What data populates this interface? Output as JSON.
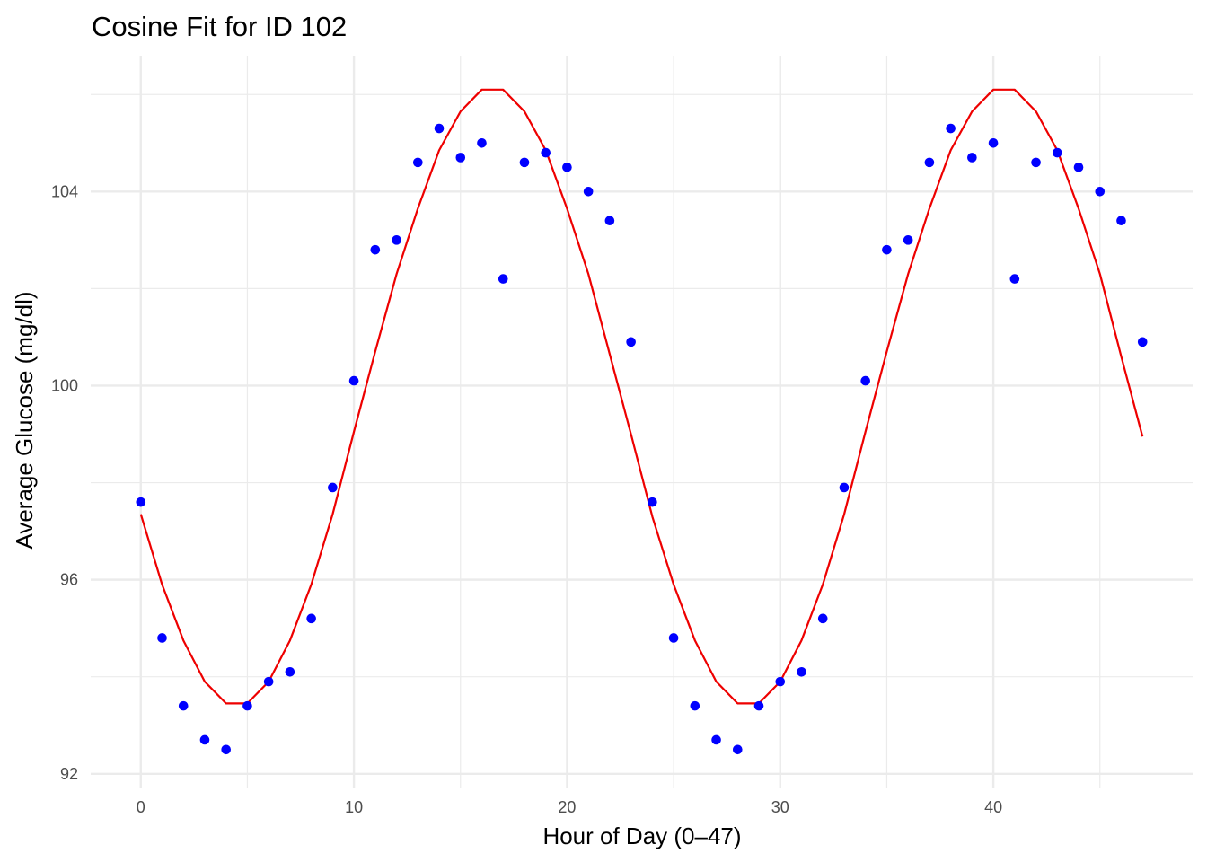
{
  "chart_data": {
    "type": "scatter",
    "title": "Cosine Fit for ID 102",
    "xlabel": "Hour of Day (0–47)",
    "ylabel": "Average Glucose (mg/dl)",
    "xlim": [
      -2.35,
      49.35
    ],
    "ylim": [
      91.7,
      106.8
    ],
    "x_ticks": [
      0,
      10,
      20,
      30,
      40
    ],
    "y_ticks": [
      92,
      96,
      100,
      104
    ],
    "grid": true,
    "legend": "none",
    "colors": {
      "points": "#0000ff",
      "fit": "#ee0000",
      "grid": "#ebebeb"
    },
    "series": [
      {
        "kind": "points",
        "x": [
          0,
          1,
          2,
          3,
          4,
          5,
          6,
          7,
          8,
          9,
          10,
          11,
          12,
          13,
          14,
          15,
          16,
          17,
          18,
          19,
          20,
          21,
          22,
          23,
          24,
          25,
          26,
          27,
          28,
          29,
          30,
          31,
          32,
          33,
          34,
          35,
          36,
          37,
          38,
          39,
          40,
          41,
          42,
          43,
          44,
          45,
          46,
          47
        ],
        "y": [
          97.6,
          94.8,
          93.4,
          92.7,
          92.5,
          93.4,
          93.9,
          94.1,
          95.2,
          97.9,
          100.1,
          102.8,
          103.0,
          104.6,
          105.3,
          104.7,
          105.0,
          102.2,
          104.6,
          104.8,
          104.5,
          104.0,
          103.4,
          100.9,
          97.6,
          94.8,
          93.4,
          92.7,
          92.5,
          93.4,
          93.9,
          94.1,
          95.2,
          97.9,
          100.1,
          102.8,
          103.0,
          104.6,
          105.3,
          104.7,
          105.0,
          102.2,
          104.6,
          104.8,
          104.5,
          104.0,
          103.4,
          100.9
        ]
      },
      {
        "kind": "fit-line",
        "x": [
          0,
          1,
          2,
          3,
          4,
          5,
          6,
          7,
          8,
          9,
          10,
          11,
          12,
          13,
          14,
          15,
          16,
          17,
          18,
          19,
          20,
          21,
          22,
          23,
          24,
          25,
          26,
          27,
          28,
          29,
          30,
          31,
          32,
          33,
          34,
          35,
          36,
          37,
          38,
          39,
          40,
          41,
          42,
          43,
          44,
          45,
          46,
          47
        ],
        "y": [
          97.35,
          95.9,
          94.75,
          93.9,
          93.45,
          93.45,
          93.9,
          94.75,
          95.9,
          97.35,
          99.05,
          100.7,
          102.3,
          103.65,
          104.85,
          105.65,
          106.1,
          106.1,
          105.65,
          104.85,
          103.65,
          102.3,
          100.65,
          99.0,
          97.3,
          95.9,
          94.75,
          93.9,
          93.45,
          93.45,
          93.9,
          94.75,
          95.9,
          97.35,
          99.05,
          100.7,
          102.3,
          103.65,
          104.85,
          105.65,
          106.1,
          106.1,
          105.65,
          104.85,
          103.65,
          102.3,
          100.6,
          98.95
        ]
      }
    ]
  }
}
